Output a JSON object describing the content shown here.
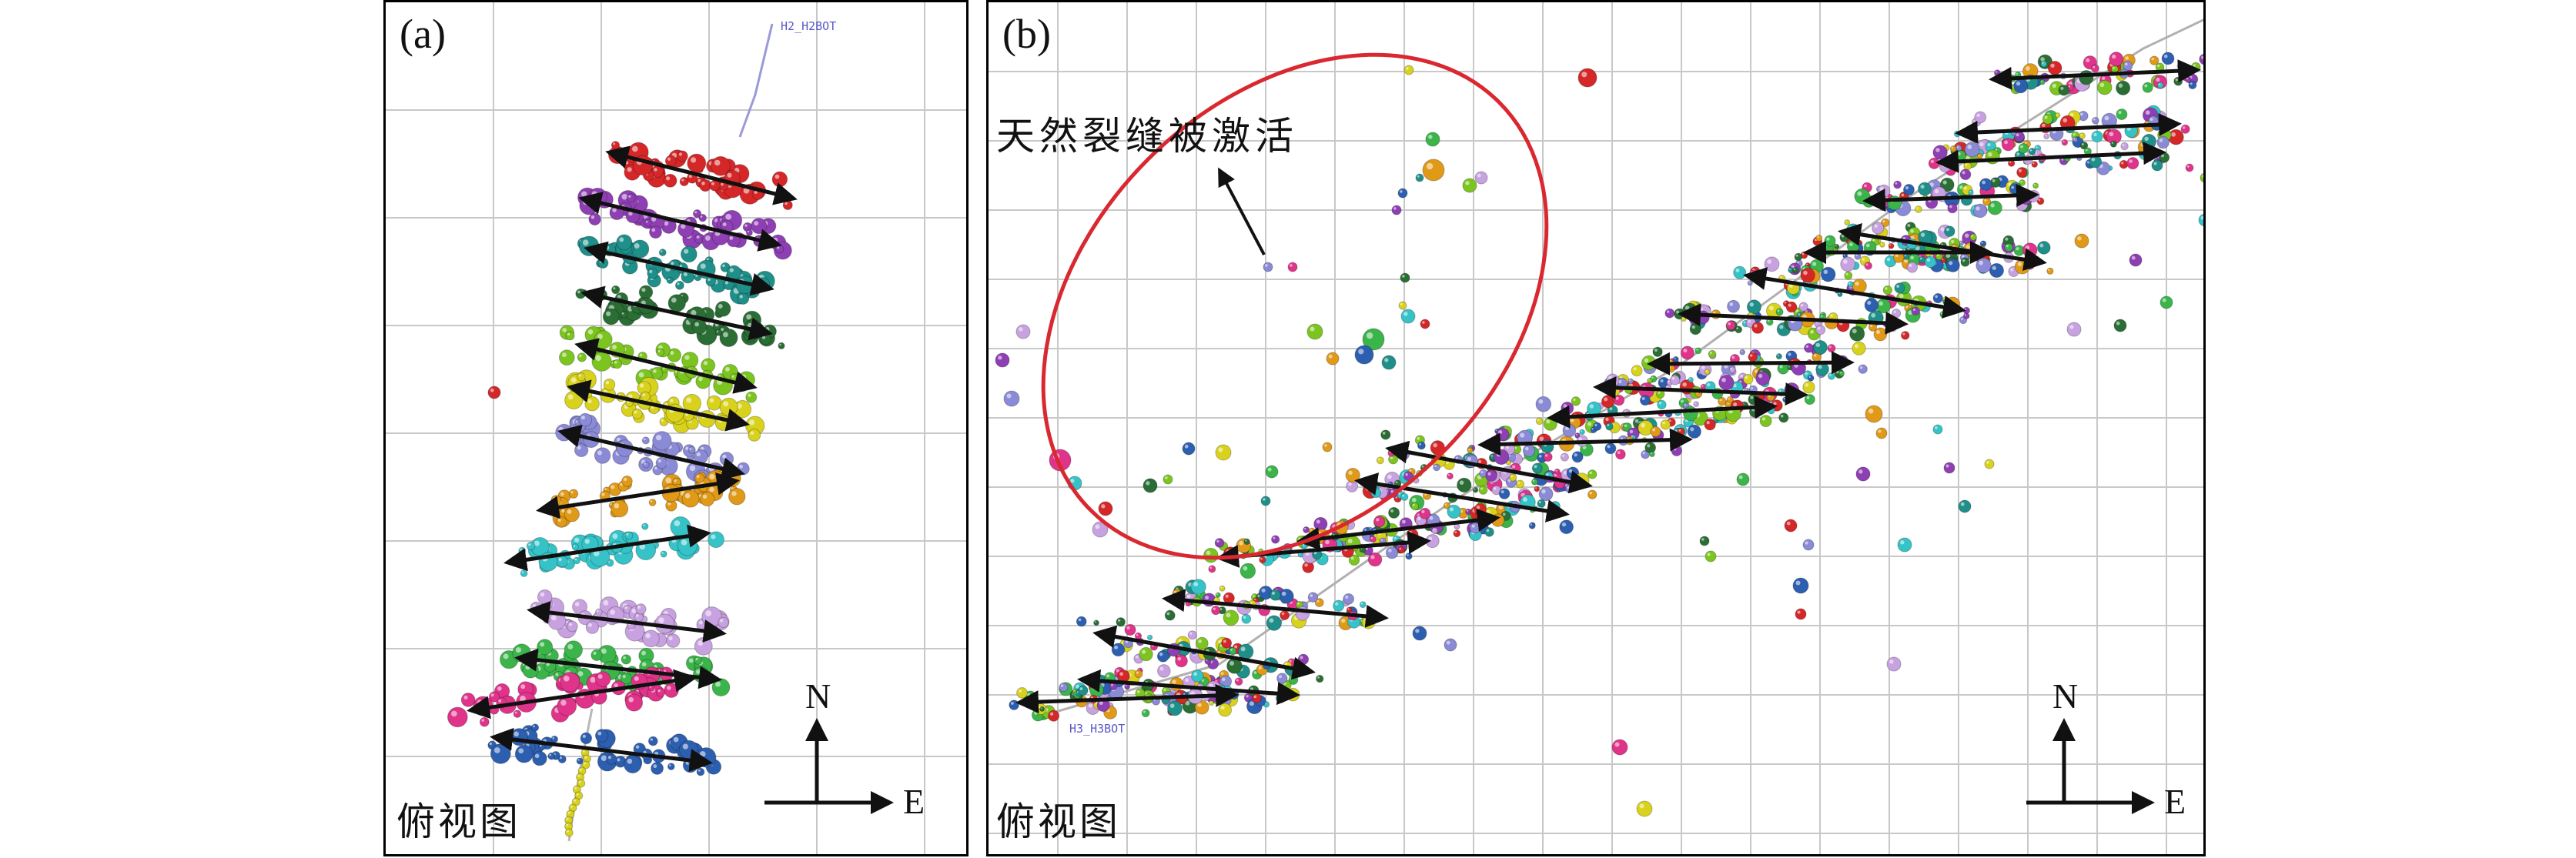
{
  "panels": {
    "a": {
      "label": "(a)",
      "view_label": "俯视图",
      "well_label": "H2_H2BOT",
      "compass": {
        "north": "N",
        "east": "E"
      }
    },
    "b": {
      "label": "(b)",
      "view_label": "俯视图",
      "well_label": "H3_H3BOT",
      "annotation": "天然裂缝被激活",
      "compass": {
        "north": "N",
        "east": "E"
      }
    }
  },
  "colors": {
    "grid": "#c8c8c8",
    "arrow": "#111111",
    "ellipse": "#d9282f",
    "well": "#9a9ad8",
    "palette": [
      "#d62728",
      "#8e3fb3",
      "#1f8f8a",
      "#2a6e35",
      "#7cc520",
      "#d8d21c",
      "#8a8ad6",
      "#e09a18",
      "#35c3c8",
      "#c8a2e0",
      "#3bb54a",
      "#e0338a",
      "#2d5fb0"
    ]
  }
}
